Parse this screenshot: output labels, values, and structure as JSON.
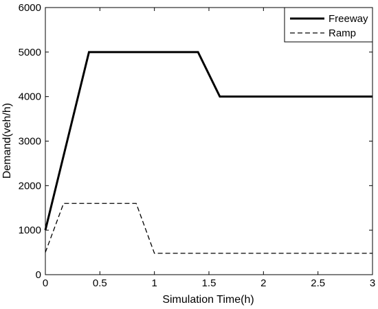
{
  "chart_data": {
    "type": "line",
    "title": "",
    "xlabel": "Simulation Time(h)",
    "ylabel": "Demand(veh/h)",
    "xlim": [
      0,
      3
    ],
    "ylim": [
      0,
      6000
    ],
    "xticks": [
      0,
      0.5,
      1,
      1.5,
      2,
      2.5,
      3
    ],
    "xtick_labels": [
      "0",
      "0.5",
      "1",
      "1.5",
      "2",
      "2.5",
      "3"
    ],
    "yticks": [
      0,
      1000,
      2000,
      3000,
      4000,
      5000,
      6000
    ],
    "ytick_labels": [
      "0",
      "1000",
      "2000",
      "3000",
      "4000",
      "5000",
      "6000"
    ],
    "grid": false,
    "legend_position": "top-right",
    "series": [
      {
        "name": "Freeway",
        "style": "solid",
        "color": "#000000",
        "x": [
          0,
          0.4,
          1.4,
          1.6,
          3.0
        ],
        "y": [
          1000,
          5000,
          5000,
          4000,
          4000
        ]
      },
      {
        "name": "Ramp",
        "style": "dashed",
        "color": "#000000",
        "x": [
          0,
          0.167,
          0.833,
          1.0,
          3.0
        ],
        "y": [
          500,
          1600,
          1600,
          480,
          480
        ]
      }
    ]
  }
}
